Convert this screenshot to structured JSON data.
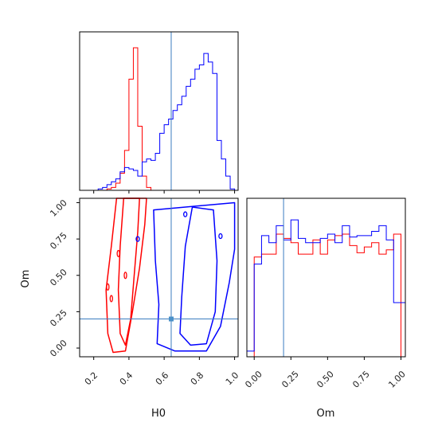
{
  "chart_data": {
    "type": "corner",
    "parameters": [
      "H0",
      "Om"
    ],
    "truths": {
      "H0": 0.64,
      "Om": 0.2
    },
    "colors": {
      "truth": "#3a7cc0",
      "red_series": "#ff0000",
      "blue_series": "#0000ff",
      "truth_marker": "#4a90c8"
    },
    "h0_histogram": {
      "xlim": [
        0.12,
        1.02
      ],
      "bins": [
        0.15,
        0.175,
        0.2,
        0.225,
        0.25,
        0.275,
        0.3,
        0.325,
        0.35,
        0.375,
        0.4,
        0.425,
        0.45,
        0.475,
        0.5,
        0.525,
        0.55,
        0.575,
        0.6,
        0.625,
        0.65,
        0.675,
        0.7,
        0.725,
        0.75,
        0.775,
        0.8,
        0.825,
        0.85,
        0.875,
        0.9,
        0.925,
        0.95,
        0.975,
        1.0
      ],
      "series": [
        {
          "color": "red",
          "values": [
            0,
            0,
            0,
            0,
            0,
            0.01,
            0.02,
            0.05,
            0.12,
            0.28,
            0.78,
            1.0,
            0.45,
            0.1,
            0.02,
            0,
            0,
            0,
            0,
            0,
            0,
            0,
            0,
            0,
            0,
            0,
            0,
            0,
            0,
            0,
            0,
            0,
            0,
            0
          ]
        },
        {
          "color": "blue",
          "values": [
            0,
            0,
            0,
            0.01,
            0.02,
            0.04,
            0.06,
            0.08,
            0.13,
            0.16,
            0.15,
            0.14,
            0.1,
            0.2,
            0.22,
            0.21,
            0.26,
            0.4,
            0.46,
            0.5,
            0.56,
            0.6,
            0.66,
            0.73,
            0.78,
            0.85,
            0.88,
            0.96,
            0.9,
            0.82,
            0.35,
            0.22,
            0.1,
            0.01
          ]
        }
      ]
    },
    "om_histogram": {
      "xlim": [
        -0.05,
        1.03
      ],
      "xticks": [
        "0.00",
        "0.25",
        "0.50",
        "0.75",
        "1.00"
      ],
      "xlabel": "Om",
      "bins": [
        -0.05,
        0.0,
        0.05,
        0.1,
        0.15,
        0.2,
        0.25,
        0.3,
        0.35,
        0.4,
        0.45,
        0.5,
        0.55,
        0.6,
        0.65,
        0.7,
        0.75,
        0.8,
        0.85,
        0.9,
        0.95,
        1.0,
        1.03
      ],
      "series": [
        {
          "color": "red",
          "values": [
            0,
            0.7,
            0.72,
            0.72,
            0.86,
            0.83,
            0.8,
            0.72,
            0.72,
            0.82,
            0.72,
            0.82,
            0.85,
            0.86,
            0.78,
            0.73,
            0.77,
            0.8,
            0.72,
            0.75,
            0.86,
            0.0
          ]
        },
        {
          "color": "blue",
          "values": [
            0.04,
            0.65,
            0.85,
            0.8,
            0.92,
            0.82,
            0.96,
            0.83,
            0.8,
            0.8,
            0.83,
            0.86,
            0.8,
            0.92,
            0.84,
            0.85,
            0.85,
            0.88,
            0.92,
            0.82,
            0.38,
            0.38
          ]
        }
      ]
    },
    "joint": {
      "xlabel": "H0",
      "ylabel": "Om",
      "xlim": [
        0.12,
        1.02
      ],
      "ylim": [
        -0.06,
        1.03
      ],
      "xticks": [
        "0.2",
        "0.4",
        "0.6",
        "0.8",
        "1.0"
      ],
      "yticks": [
        "0.00",
        "0.25",
        "0.50",
        "0.75",
        "1.00"
      ],
      "red_contours": [
        [
          [
            0.33,
            1.03
          ],
          [
            0.3,
            0.7
          ],
          [
            0.27,
            0.4
          ],
          [
            0.28,
            0.1
          ],
          [
            0.31,
            -0.03
          ],
          [
            0.38,
            -0.02
          ],
          [
            0.42,
            0.25
          ],
          [
            0.46,
            0.55
          ],
          [
            0.49,
            0.85
          ],
          [
            0.5,
            1.03
          ]
        ],
        [
          [
            0.37,
            1.03
          ],
          [
            0.35,
            0.7
          ],
          [
            0.34,
            0.4
          ],
          [
            0.35,
            0.1
          ],
          [
            0.38,
            0.02
          ],
          [
            0.41,
            0.2
          ],
          [
            0.43,
            0.5
          ],
          [
            0.45,
            0.8
          ],
          [
            0.46,
            1.03
          ]
        ]
      ],
      "blue_contours": [
        [
          [
            0.54,
            0.95
          ],
          [
            0.55,
            0.6
          ],
          [
            0.57,
            0.3
          ],
          [
            0.56,
            0.03
          ],
          [
            0.66,
            -0.02
          ],
          [
            0.84,
            -0.02
          ],
          [
            0.92,
            0.15
          ],
          [
            0.97,
            0.45
          ],
          [
            1.0,
            0.68
          ],
          [
            1.0,
            1.0
          ]
        ],
        [
          [
            0.76,
            0.97
          ],
          [
            0.72,
            0.7
          ],
          [
            0.7,
            0.35
          ],
          [
            0.69,
            0.1
          ],
          [
            0.75,
            0.02
          ],
          [
            0.84,
            0.03
          ],
          [
            0.89,
            0.25
          ],
          [
            0.9,
            0.6
          ],
          [
            0.88,
            0.95
          ]
        ]
      ]
    }
  }
}
